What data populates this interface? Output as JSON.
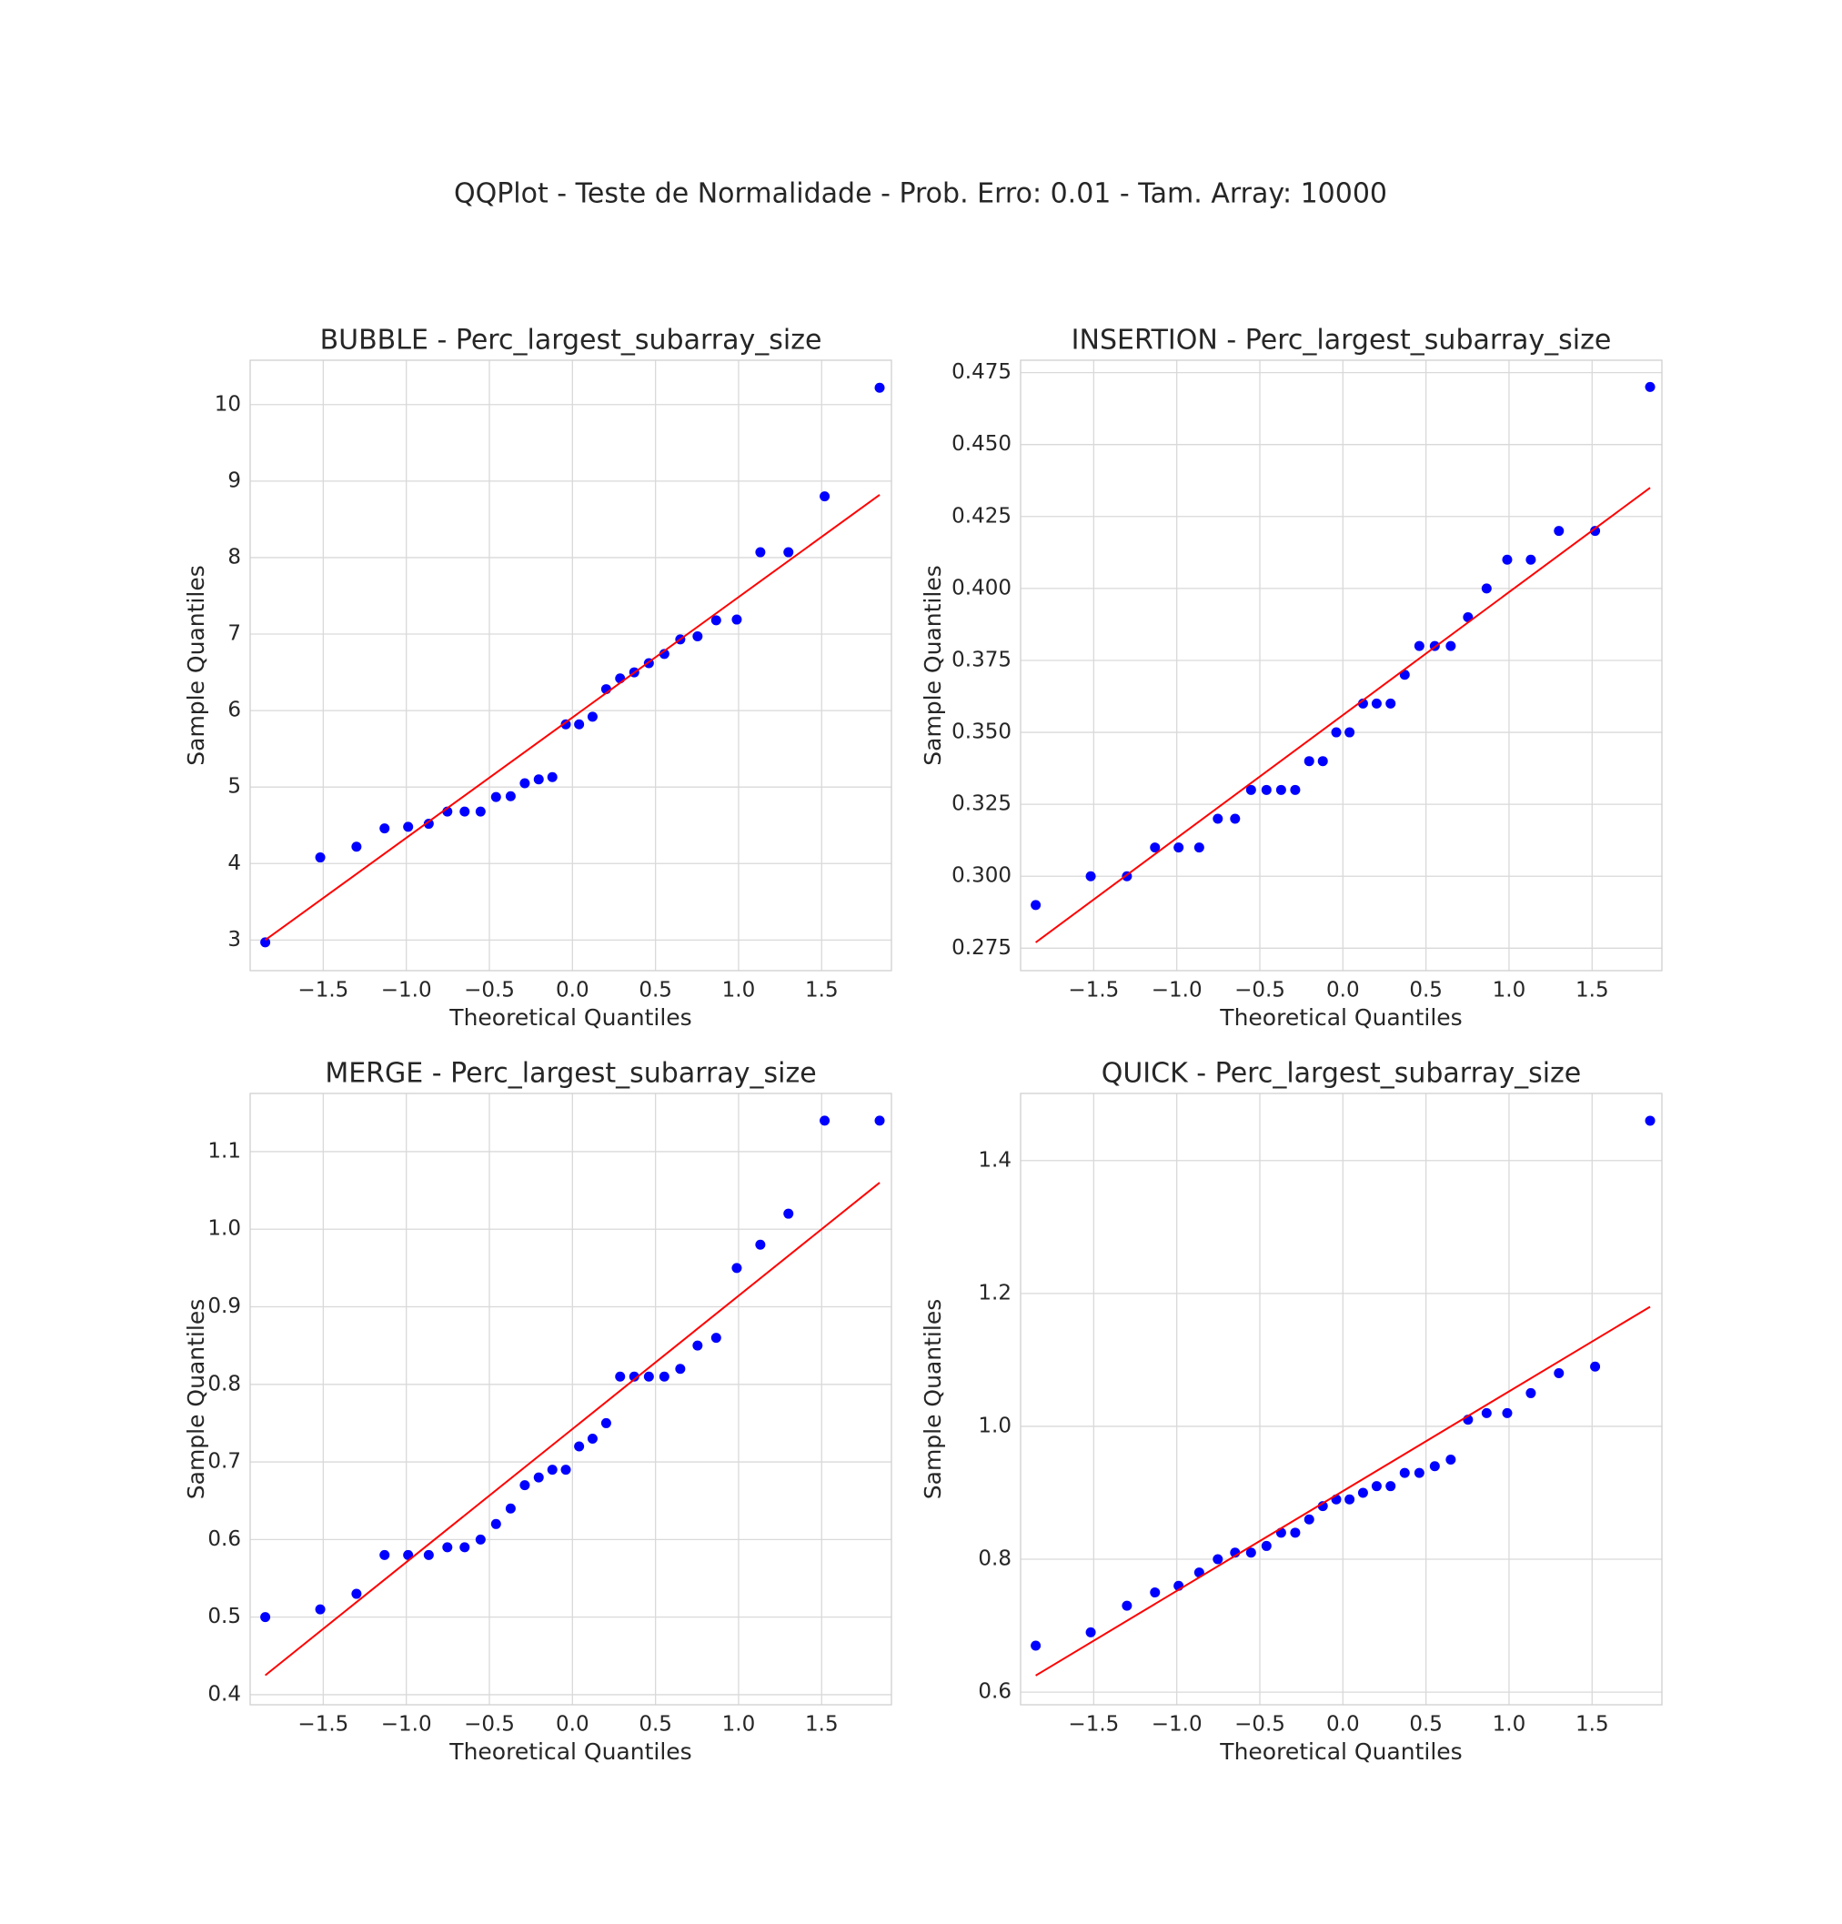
{
  "title": "QQPlot - Teste de Normalidade - Prob. Erro: 0.01 - Tam. Array: 10000",
  "chart_data": [
    {
      "type": "scatter",
      "title": "BUBBLE - Perc_largest_subarray_size",
      "x_label": "Theoretical Quantiles",
      "y_label": "Sample Quantiles",
      "x": [
        -1.849,
        -1.518,
        -1.3,
        -1.131,
        -0.989,
        -0.865,
        -0.753,
        -0.649,
        -0.553,
        -0.46,
        -0.372,
        -0.287,
        -0.203,
        -0.121,
        -0.04,
        0.04,
        0.121,
        0.203,
        0.287,
        0.372,
        0.46,
        0.553,
        0.649,
        0.753,
        0.865,
        0.989,
        1.131,
        1.3,
        1.518,
        1.849
      ],
      "series": [
        {
          "color": "#0000ff",
          "values": [
            2.97,
            4.08,
            4.22,
            4.46,
            4.48,
            4.52,
            4.68,
            4.68,
            4.68,
            4.87,
            4.88,
            5.05,
            5.1,
            5.13,
            5.82,
            5.82,
            5.92,
            6.28,
            6.42,
            6.5,
            6.62,
            6.74,
            6.93,
            6.97,
            7.18,
            7.19,
            8.07,
            8.07,
            8.8,
            10.22
          ]
        }
      ],
      "line": {
        "color": "#ff0000",
        "x": [
          -1.849,
          1.849
        ],
        "values": [
          3.0,
          8.82
        ]
      },
      "xlim": [
        -1.94,
        1.92
      ],
      "ylim": [
        2.6,
        10.58
      ],
      "xticks": [
        {
          "value": -1.5,
          "label": "−1.5"
        },
        {
          "value": -1,
          "label": "−1.0"
        },
        {
          "value": -0.5,
          "label": "−0.5"
        },
        {
          "value": 0,
          "label": "0.0"
        },
        0.5,
        {
          "value": 1,
          "label": "1.0"
        },
        1.5
      ],
      "yticks": [
        3,
        4,
        5,
        6,
        7,
        8,
        9,
        10
      ],
      "grid": true
    },
    {
      "type": "scatter",
      "title": "INSERTION - Perc_largest_subarray_size",
      "x_label": "Theoretical Quantiles",
      "y_label": "Sample Quantiles",
      "x": [
        -1.849,
        -1.518,
        -1.3,
        -1.131,
        -0.989,
        -0.865,
        -0.753,
        -0.649,
        -0.553,
        -0.46,
        -0.372,
        -0.287,
        -0.203,
        -0.121,
        -0.04,
        0.04,
        0.121,
        0.203,
        0.287,
        0.372,
        0.46,
        0.553,
        0.649,
        0.753,
        0.865,
        0.989,
        1.131,
        1.3,
        1.518,
        1.849
      ],
      "series": [
        {
          "color": "#0000ff",
          "values": [
            0.29,
            0.3,
            0.3,
            0.31,
            0.31,
            0.31,
            0.32,
            0.32,
            0.33,
            0.33,
            0.33,
            0.33,
            0.34,
            0.34,
            0.35,
            0.35,
            0.36,
            0.36,
            0.36,
            0.37,
            0.38,
            0.38,
            0.38,
            0.39,
            0.4,
            0.41,
            0.41,
            0.42,
            0.42,
            0.47
          ]
        }
      ],
      "line": {
        "color": "#ff0000",
        "x": [
          -1.849,
          1.849
        ],
        "values": [
          0.277,
          0.435
        ]
      },
      "xlim": [
        -1.94,
        1.92
      ],
      "ylim": [
        0.2672,
        0.4793
      ],
      "xticks": [
        {
          "value": -1.5,
          "label": "−1.5"
        },
        {
          "value": -1,
          "label": "−1.0"
        },
        {
          "value": -0.5,
          "label": "−0.5"
        },
        {
          "value": 0,
          "label": "0.0"
        },
        0.5,
        {
          "value": 1,
          "label": "1.0"
        },
        1.5
      ],
      "yticks": [
        0.275,
        {
          "value": 0.3,
          "label": "0.300"
        },
        0.325,
        {
          "value": 0.35,
          "label": "0.350"
        },
        0.375,
        {
          "value": 0.4,
          "label": "0.400"
        },
        0.425,
        {
          "value": 0.45,
          "label": "0.450"
        },
        0.475
      ],
      "grid": true
    },
    {
      "type": "scatter",
      "title": "MERGE - Perc_largest_subarray_size",
      "x_label": "Theoretical Quantiles",
      "y_label": "Sample Quantiles",
      "x": [
        -1.849,
        -1.518,
        -1.3,
        -1.131,
        -0.989,
        -0.865,
        -0.753,
        -0.649,
        -0.553,
        -0.46,
        -0.372,
        -0.287,
        -0.203,
        -0.121,
        -0.04,
        0.04,
        0.121,
        0.203,
        0.287,
        0.372,
        0.46,
        0.553,
        0.649,
        0.753,
        0.865,
        0.989,
        1.131,
        1.3,
        1.518,
        1.849
      ],
      "series": [
        {
          "color": "#0000ff",
          "values": [
            0.5,
            0.51,
            0.53,
            0.58,
            0.58,
            0.58,
            0.59,
            0.59,
            0.6,
            0.62,
            0.64,
            0.67,
            0.68,
            0.69,
            0.69,
            0.72,
            0.73,
            0.75,
            0.81,
            0.81,
            0.81,
            0.81,
            0.82,
            0.85,
            0.86,
            0.95,
            0.98,
            1.02,
            1.14,
            1.14
          ]
        }
      ],
      "line": {
        "color": "#ff0000",
        "x": [
          -1.849,
          1.849
        ],
        "values": [
          0.425,
          1.06
        ]
      },
      "xlim": [
        -1.94,
        1.92
      ],
      "ylim": [
        0.387,
        1.175
      ],
      "xticks": [
        {
          "value": -1.5,
          "label": "−1.5"
        },
        {
          "value": -1,
          "label": "−1.0"
        },
        {
          "value": -0.5,
          "label": "−0.5"
        },
        {
          "value": 0,
          "label": "0.0"
        },
        0.5,
        {
          "value": 1,
          "label": "1.0"
        },
        1.5
      ],
      "yticks": [
        0.4,
        0.5,
        0.6,
        0.7,
        0.8,
        0.9,
        {
          "value": 1,
          "label": "1.0"
        },
        1.1
      ],
      "grid": true
    },
    {
      "type": "scatter",
      "title": "QUICK - Perc_largest_subarray_size",
      "x_label": "Theoretical Quantiles",
      "y_label": "Sample Quantiles",
      "x": [
        -1.849,
        -1.518,
        -1.3,
        -1.131,
        -0.989,
        -0.865,
        -0.753,
        -0.649,
        -0.553,
        -0.46,
        -0.372,
        -0.287,
        -0.203,
        -0.121,
        -0.04,
        0.04,
        0.121,
        0.203,
        0.287,
        0.372,
        0.46,
        0.553,
        0.649,
        0.753,
        0.865,
        0.989,
        1.131,
        1.3,
        1.518,
        1.849
      ],
      "series": [
        {
          "color": "#0000ff",
          "values": [
            0.67,
            0.69,
            0.73,
            0.75,
            0.76,
            0.78,
            0.8,
            0.81,
            0.81,
            0.82,
            0.84,
            0.84,
            0.86,
            0.88,
            0.89,
            0.89,
            0.9,
            0.91,
            0.91,
            0.93,
            0.93,
            0.94,
            0.95,
            1.01,
            1.02,
            1.02,
            1.05,
            1.08,
            1.09,
            1.46
          ]
        }
      ],
      "line": {
        "color": "#ff0000",
        "x": [
          -1.849,
          1.849
        ],
        "values": [
          0.625,
          1.18
        ]
      },
      "xlim": [
        -1.94,
        1.92
      ],
      "ylim": [
        0.581,
        1.501
      ],
      "xticks": [
        {
          "value": -1.5,
          "label": "−1.5"
        },
        {
          "value": -1,
          "label": "−1.0"
        },
        {
          "value": -0.5,
          "label": "−0.5"
        },
        {
          "value": 0,
          "label": "0.0"
        },
        0.5,
        {
          "value": 1,
          "label": "1.0"
        },
        1.5
      ],
      "yticks": [
        0.6,
        0.8,
        {
          "value": 1,
          "label": "1.0"
        },
        1.2,
        1.4
      ],
      "grid": true
    }
  ]
}
